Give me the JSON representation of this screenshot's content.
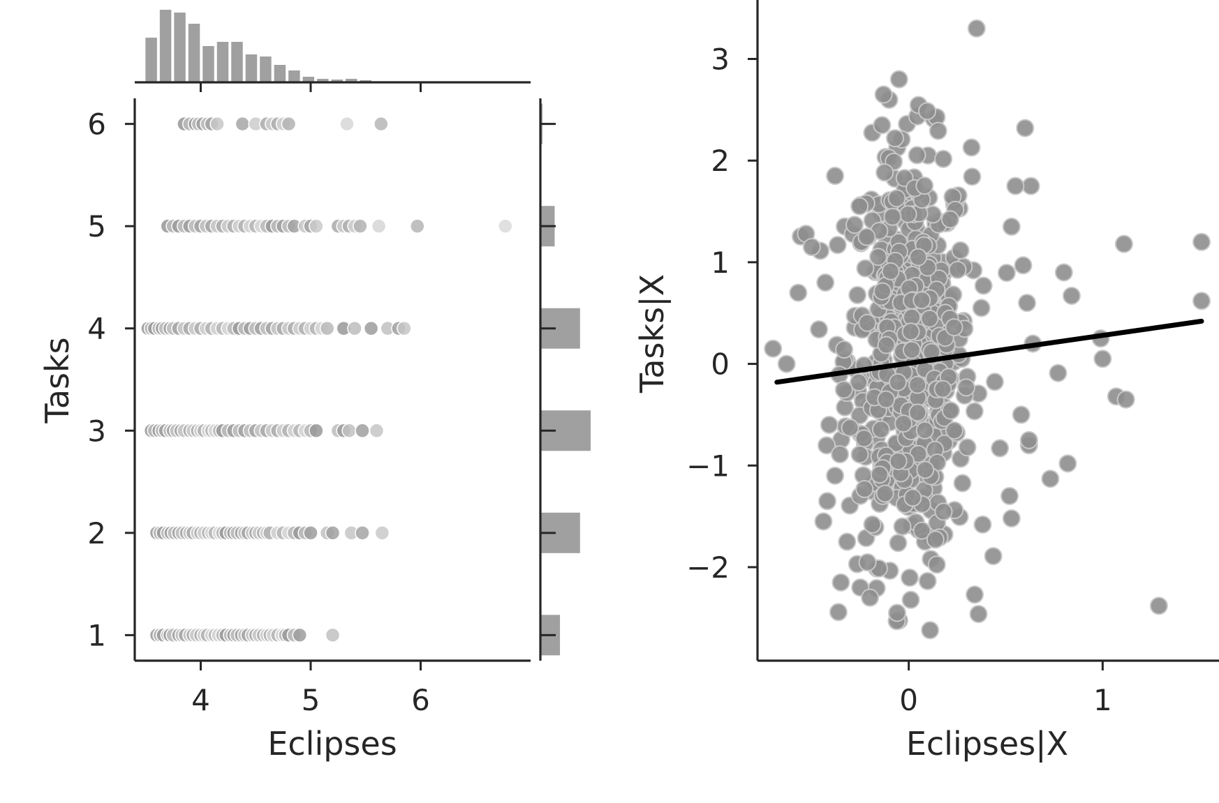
{
  "chart_data": [
    {
      "type": "scatter",
      "title": "",
      "xlabel": "Eclipses",
      "ylabel": "Tasks",
      "xlim": [
        3.4,
        7.0
      ],
      "ylim": [
        0.75,
        6.25
      ],
      "xticks": [
        4,
        5,
        6
      ],
      "yticks": [
        1,
        2,
        3,
        4,
        5,
        6
      ],
      "grid": false,
      "marginal_top_histogram": {
        "type": "bar",
        "bin_centers": [
          3.55,
          3.68,
          3.81,
          3.94,
          4.07,
          4.2,
          4.33,
          4.46,
          4.59,
          4.72,
          4.85,
          4.98,
          5.11,
          5.24,
          5.37,
          5.5
        ],
        "counts": [
          64,
          104,
          100,
          84,
          52,
          58,
          58,
          40,
          37,
          25,
          17,
          8,
          5,
          4,
          5,
          3
        ]
      },
      "marginal_right_histogram": {
        "type": "bar",
        "categories": [
          1,
          2,
          3,
          4,
          5,
          6
        ],
        "counts": [
          37,
          75,
          95,
          75,
          27,
          4
        ]
      },
      "points": [
        {
          "y": 1,
          "x": [
            3.6,
            3.63,
            3.66,
            3.7,
            3.72,
            3.75,
            3.8,
            3.83,
            3.86,
            3.9,
            3.93,
            3.96,
            4.0,
            4.03,
            4.06,
            4.1,
            4.13,
            4.16,
            4.2,
            4.23,
            4.27,
            4.3,
            4.33,
            4.37,
            4.4,
            4.43,
            4.47,
            4.5,
            4.53,
            4.57,
            4.6,
            4.63,
            4.66,
            4.7,
            4.74,
            4.77,
            4.8,
            4.85,
            4.9,
            5.2
          ]
        },
        {
          "y": 2,
          "x": [
            3.6,
            3.63,
            3.66,
            3.7,
            3.73,
            3.76,
            3.8,
            3.83,
            3.87,
            3.9,
            3.93,
            3.97,
            4.0,
            4.03,
            4.07,
            4.1,
            4.13,
            4.17,
            4.2,
            4.23,
            4.27,
            4.3,
            4.33,
            4.37,
            4.4,
            4.43,
            4.47,
            4.5,
            4.53,
            4.57,
            4.6,
            4.63,
            4.7,
            4.75,
            4.8,
            4.85,
            4.9,
            4.95,
            5.0,
            5.15,
            5.2,
            5.37,
            5.47,
            5.65
          ]
        },
        {
          "y": 3,
          "x": [
            3.55,
            3.58,
            3.62,
            3.65,
            3.68,
            3.72,
            3.75,
            3.78,
            3.82,
            3.85,
            3.9,
            3.93,
            3.97,
            4.0,
            4.03,
            4.07,
            4.1,
            4.13,
            4.17,
            4.2,
            4.25,
            4.3,
            4.35,
            4.4,
            4.45,
            4.5,
            4.55,
            4.6,
            4.65,
            4.7,
            4.75,
            4.8,
            4.85,
            4.9,
            4.95,
            5.0,
            5.05,
            5.25,
            5.3,
            5.35,
            5.47,
            5.6
          ]
        },
        {
          "y": 4,
          "x": [
            3.52,
            3.55,
            3.58,
            3.62,
            3.65,
            3.68,
            3.72,
            3.75,
            3.8,
            3.85,
            3.9,
            3.95,
            4.0,
            4.05,
            4.1,
            4.15,
            4.2,
            4.25,
            4.3,
            4.35,
            4.4,
            4.45,
            4.5,
            4.55,
            4.6,
            4.65,
            4.7,
            4.75,
            4.8,
            4.85,
            4.9,
            4.95,
            5.0,
            5.05,
            5.1,
            5.15,
            5.3,
            5.4,
            5.55,
            5.7,
            5.8,
            5.85
          ]
        },
        {
          "y": 5,
          "x": [
            3.7,
            3.75,
            3.8,
            3.85,
            3.9,
            3.95,
            4.0,
            4.05,
            4.1,
            4.15,
            4.2,
            4.25,
            4.3,
            4.35,
            4.4,
            4.45,
            4.5,
            4.55,
            4.6,
            4.65,
            4.7,
            4.75,
            4.8,
            4.85,
            4.95,
            5.0,
            5.05,
            5.25,
            5.3,
            5.35,
            5.4,
            5.45,
            5.62,
            5.97,
            6.77
          ]
        },
        {
          "y": 6,
          "x": [
            3.85,
            3.9,
            3.95,
            3.98,
            4.02,
            4.06,
            4.1,
            4.15,
            4.38,
            4.5,
            4.6,
            4.65,
            4.7,
            4.75,
            4.8,
            5.33,
            5.64
          ]
        }
      ]
    },
    {
      "type": "scatter",
      "title": "",
      "xlabel": "Eclipses|X",
      "ylabel": "Tasks|X",
      "xlim": [
        -0.78,
        1.6
      ],
      "ylim": [
        -2.92,
        3.58
      ],
      "xticks": [
        0,
        1
      ],
      "yticks": [
        -2,
        -1,
        0,
        1,
        2,
        3
      ],
      "grid": false,
      "regression_line": {
        "x": [
          -0.68,
          1.51
        ],
        "y": [
          -0.18,
          0.42
        ]
      },
      "point_count": 600,
      "outliers": [
        [
          -0.7,
          0.15
        ],
        [
          -0.63,
          0.0
        ],
        [
          -0.57,
          0.7
        ],
        [
          -0.53,
          1.28
        ],
        [
          -0.5,
          1.15
        ],
        [
          -0.43,
          0.8
        ],
        [
          -0.38,
          1.85
        ],
        [
          -0.41,
          -0.6
        ],
        [
          -0.38,
          -1.1
        ],
        [
          -0.42,
          -1.35
        ],
        [
          -0.44,
          -1.55
        ],
        [
          -0.35,
          -2.15
        ],
        [
          -0.25,
          -2.2
        ],
        [
          -0.2,
          -2.3
        ],
        [
          -0.06,
          -2.45
        ],
        [
          0.11,
          -2.62
        ],
        [
          0.34,
          -2.27
        ],
        [
          1.29,
          -2.38
        ],
        [
          0.35,
          3.3
        ],
        [
          -0.05,
          2.8
        ],
        [
          -0.13,
          2.65
        ],
        [
          0.6,
          2.32
        ],
        [
          0.63,
          1.75
        ],
        [
          0.55,
          1.75
        ],
        [
          1.11,
          1.18
        ],
        [
          1.51,
          1.2
        ],
        [
          1.51,
          0.62
        ],
        [
          0.84,
          0.67
        ],
        [
          0.8,
          0.9
        ],
        [
          0.99,
          0.25
        ],
        [
          1.0,
          0.05
        ],
        [
          0.77,
          -0.09
        ],
        [
          1.07,
          -0.32
        ],
        [
          1.12,
          -0.35
        ],
        [
          0.82,
          -0.98
        ],
        [
          0.73,
          -1.13
        ],
        [
          0.53,
          -1.52
        ],
        [
          0.52,
          -1.3
        ],
        [
          0.58,
          -0.5
        ],
        [
          0.62,
          -0.8
        ],
        [
          0.62,
          -0.75
        ],
        [
          0.47,
          -0.83
        ],
        [
          0.61,
          0.6
        ],
        [
          0.59,
          0.97
        ],
        [
          0.53,
          1.35
        ],
        [
          0.64,
          0.2
        ]
      ]
    }
  ]
}
